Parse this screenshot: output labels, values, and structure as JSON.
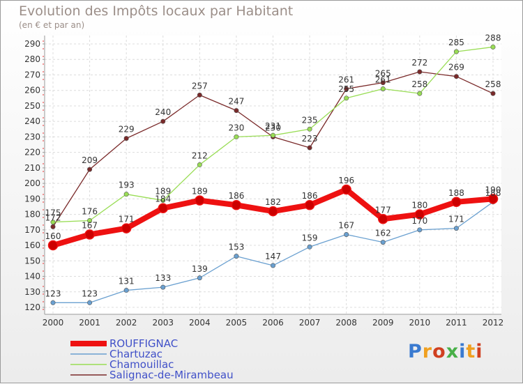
{
  "chart_data": {
    "type": "line",
    "title": "Evolution des Impôts locaux par Habitant",
    "subtitle": "(en € et par an)",
    "x": [
      "2000",
      "2001",
      "2002",
      "2003",
      "2004",
      "2005",
      "2006",
      "2007",
      "2008",
      "2009",
      "2010",
      "2011",
      "2012"
    ],
    "ylim": [
      120,
      290
    ],
    "ytick_step": 10,
    "grid": true,
    "legend_position": "bottom-left",
    "series": [
      {
        "name": "ROUFFIGNAC",
        "color": "#ee1111",
        "values": [
          160,
          167,
          171,
          184,
          189,
          186,
          182,
          186,
          196,
          177,
          180,
          188,
          190
        ]
      },
      {
        "name": "Chartuzac",
        "color": "#6aa0d0",
        "values": [
          123,
          123,
          131,
          133,
          139,
          153,
          147,
          159,
          167,
          162,
          170,
          171,
          188
        ]
      },
      {
        "name": "Chamouillac",
        "color": "#99dd55",
        "values": [
          175,
          176,
          193,
          189,
          212,
          230,
          231,
          235,
          255,
          261,
          258,
          285,
          288
        ]
      },
      {
        "name": "Salignac-de-Mirambeau",
        "color": "#7a2a2a",
        "values": [
          172,
          209,
          229,
          240,
          257,
          247,
          230,
          223,
          261,
          265,
          272,
          269,
          258
        ]
      }
    ]
  },
  "logo": {
    "text": "Proxiti",
    "colors": [
      "#3a7ad0",
      "#f0a020",
      "#d04020",
      "#48b048",
      "#3a7ad0",
      "#f0a020",
      "#d04020"
    ]
  }
}
